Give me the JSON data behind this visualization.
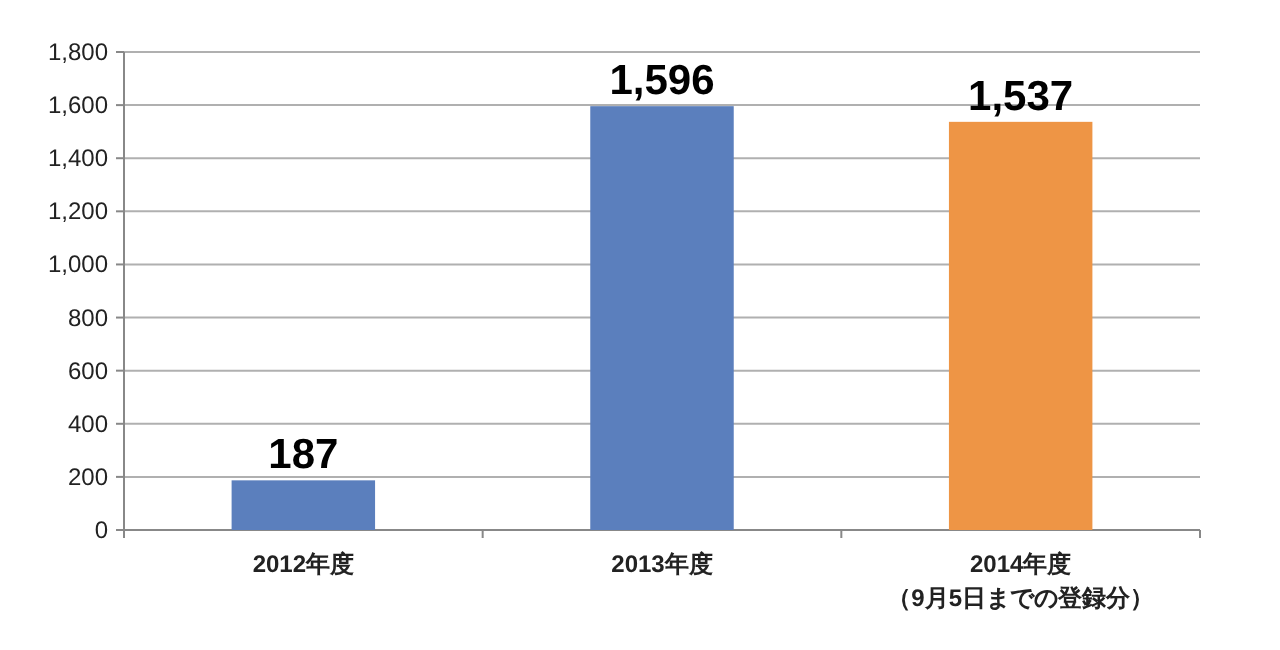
{
  "chart_data": {
    "type": "bar",
    "categories": [
      "2012年度",
      "2013年度",
      "2014年度（9月5日までの登録分）"
    ],
    "values": [
      187,
      1596,
      1537
    ],
    "colors": [
      "#5b7fbd",
      "#5b7fbd",
      "#ee9545"
    ],
    "value_labels": [
      "187",
      "1,596",
      "1,537"
    ],
    "ylim": [
      0,
      1800
    ],
    "yticks": [
      0,
      {
        "value": 200,
        "label": "200"
      },
      {
        "value": 400,
        "label": "400"
      },
      {
        "value": 600,
        "label": "600"
      },
      {
        "value": 800,
        "label": "800"
      },
      {
        "value": 1000,
        "label": "1,000"
      },
      {
        "value": 1200,
        "label": "1,200"
      },
      {
        "value": 1400,
        "label": "1,400"
      },
      {
        "value": 1600,
        "label": "1,600"
      },
      {
        "value": 1800,
        "label": "1,800"
      }
    ],
    "grid": "y"
  }
}
